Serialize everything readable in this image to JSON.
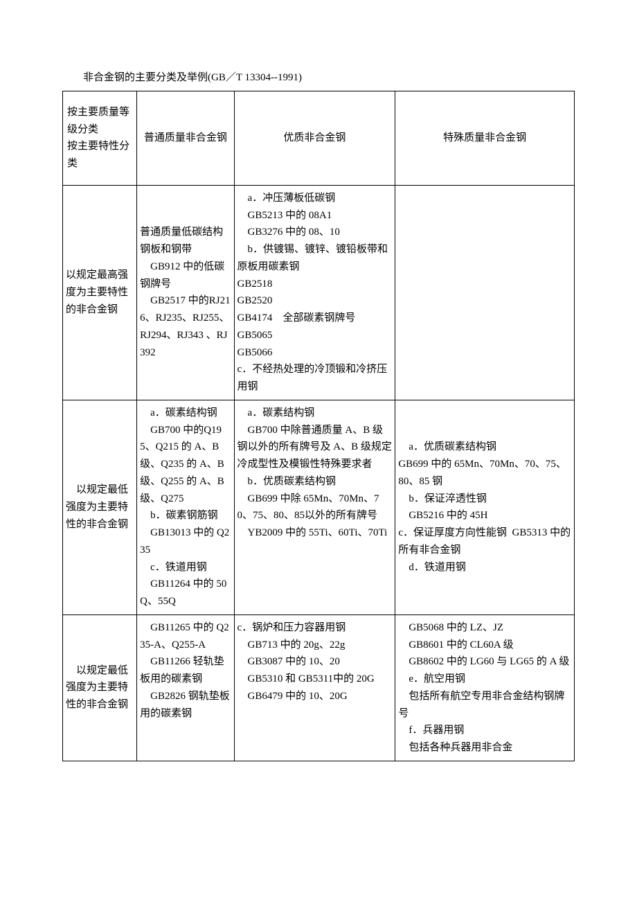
{
  "caption": "非合金钢的主要分类及举例(GB／T 13304--1991)",
  "table": {
    "border_color": "#000000",
    "background_color": "#ffffff",
    "font_family": "SimSun",
    "font_size_pt": 11,
    "columns": [
      {
        "width_pct": 14.5
      },
      {
        "width_pct": 19.0
      },
      {
        "width_pct": 31.5
      },
      {
        "width_pct": 35.0
      }
    ],
    "header": {
      "col1": "按主要质量等级分类\n按主要特性分类",
      "col2": "普通质量非合金钢",
      "col3": "优质非合金钢",
      "col4": "特殊质量非合金钢"
    },
    "rows": [
      {
        "col1": "以规定最高强度为主要特性的非合金钢",
        "col2": "普通质量低碳结构钢板和钢带\n    GB912 中的低碳钢牌号\n    GB2517 中的RJ216、RJ235、RJ255、RJ294、RJ343 、RJ392",
        "col3": "    a．冲压薄板低碳钢\n    GB5213 中的 08A1\n    GB3276 中的 08、10\n    b．供镀锡、镀锌、镀铅板带和原板用碳素钢\nGB2518\nGB2520\nGB4174    全部碳素钢牌号\nGB5065\nGB5066\nc．不经热处理的冷顶锻和冷挤压用钢",
        "col4": ""
      },
      {
        "col1": "    以规定最低强度为主要特性的非合金钢",
        "col2": "    a．碳素结构钢\n    GB700 中的Q195、Q215 的 A、B 级、Q235 的 A、B 级、Q255 的 A、B 级、Q275\n    b．碳素钢筋钢\n    GB13013 中的 Q235\n    c．铁道用钢\n    GB11264 中的 50Q、55Q",
        "col3": "    a．碳素结构钢\n    GB700 中除普通质量 A、B 级钢以外的所有牌号及 A、B 级规定冷成型性及模锻性特殊要求者\n    b．优质碳素结构钢\n    GB699 中除 65Mn、70Mn、70、75、80、85以外的所有牌号\n    YB2009 中的 55Ti、60Ti、70Ti",
        "col4": "    a．优质碳素结构钢\nGB699 中的 65Mn、70Mn、70、75、80、85 钢\n    b．保证淬透性钢\n    GB5216 中的 45H\nc．保证厚度方向性能钢  GB5313 中的所有非合金钢\n    d．铁道用钢"
      },
      {
        "col1": "    以规定最低强度为主要特性的非合金钢",
        "col2": "    GB11265 中的 Q235-A、Q255-A\n    GB11266 轻轨垫板用的碳素钢\n    GB2826 钢轨垫板用的碳素钢",
        "col3": "c．锅炉和压力容器用钢\n    GB713 中的 20g、22g\n    GB3087 中的 10、20\n    GB5310 和 GB5311中的 20G\n    GB6479 中的 10、20G",
        "col4": "    GB5068 中的 LZ、JZ\n    GB8601 中的 CL60A 级\n    GB8602 中的 LG60 与 LG65 的 A 级\n    e．航空用钢\n    包括所有航空专用非合金结构钢牌号\n    f．兵器用钢\n    包括各种兵器用非合金"
      }
    ]
  }
}
